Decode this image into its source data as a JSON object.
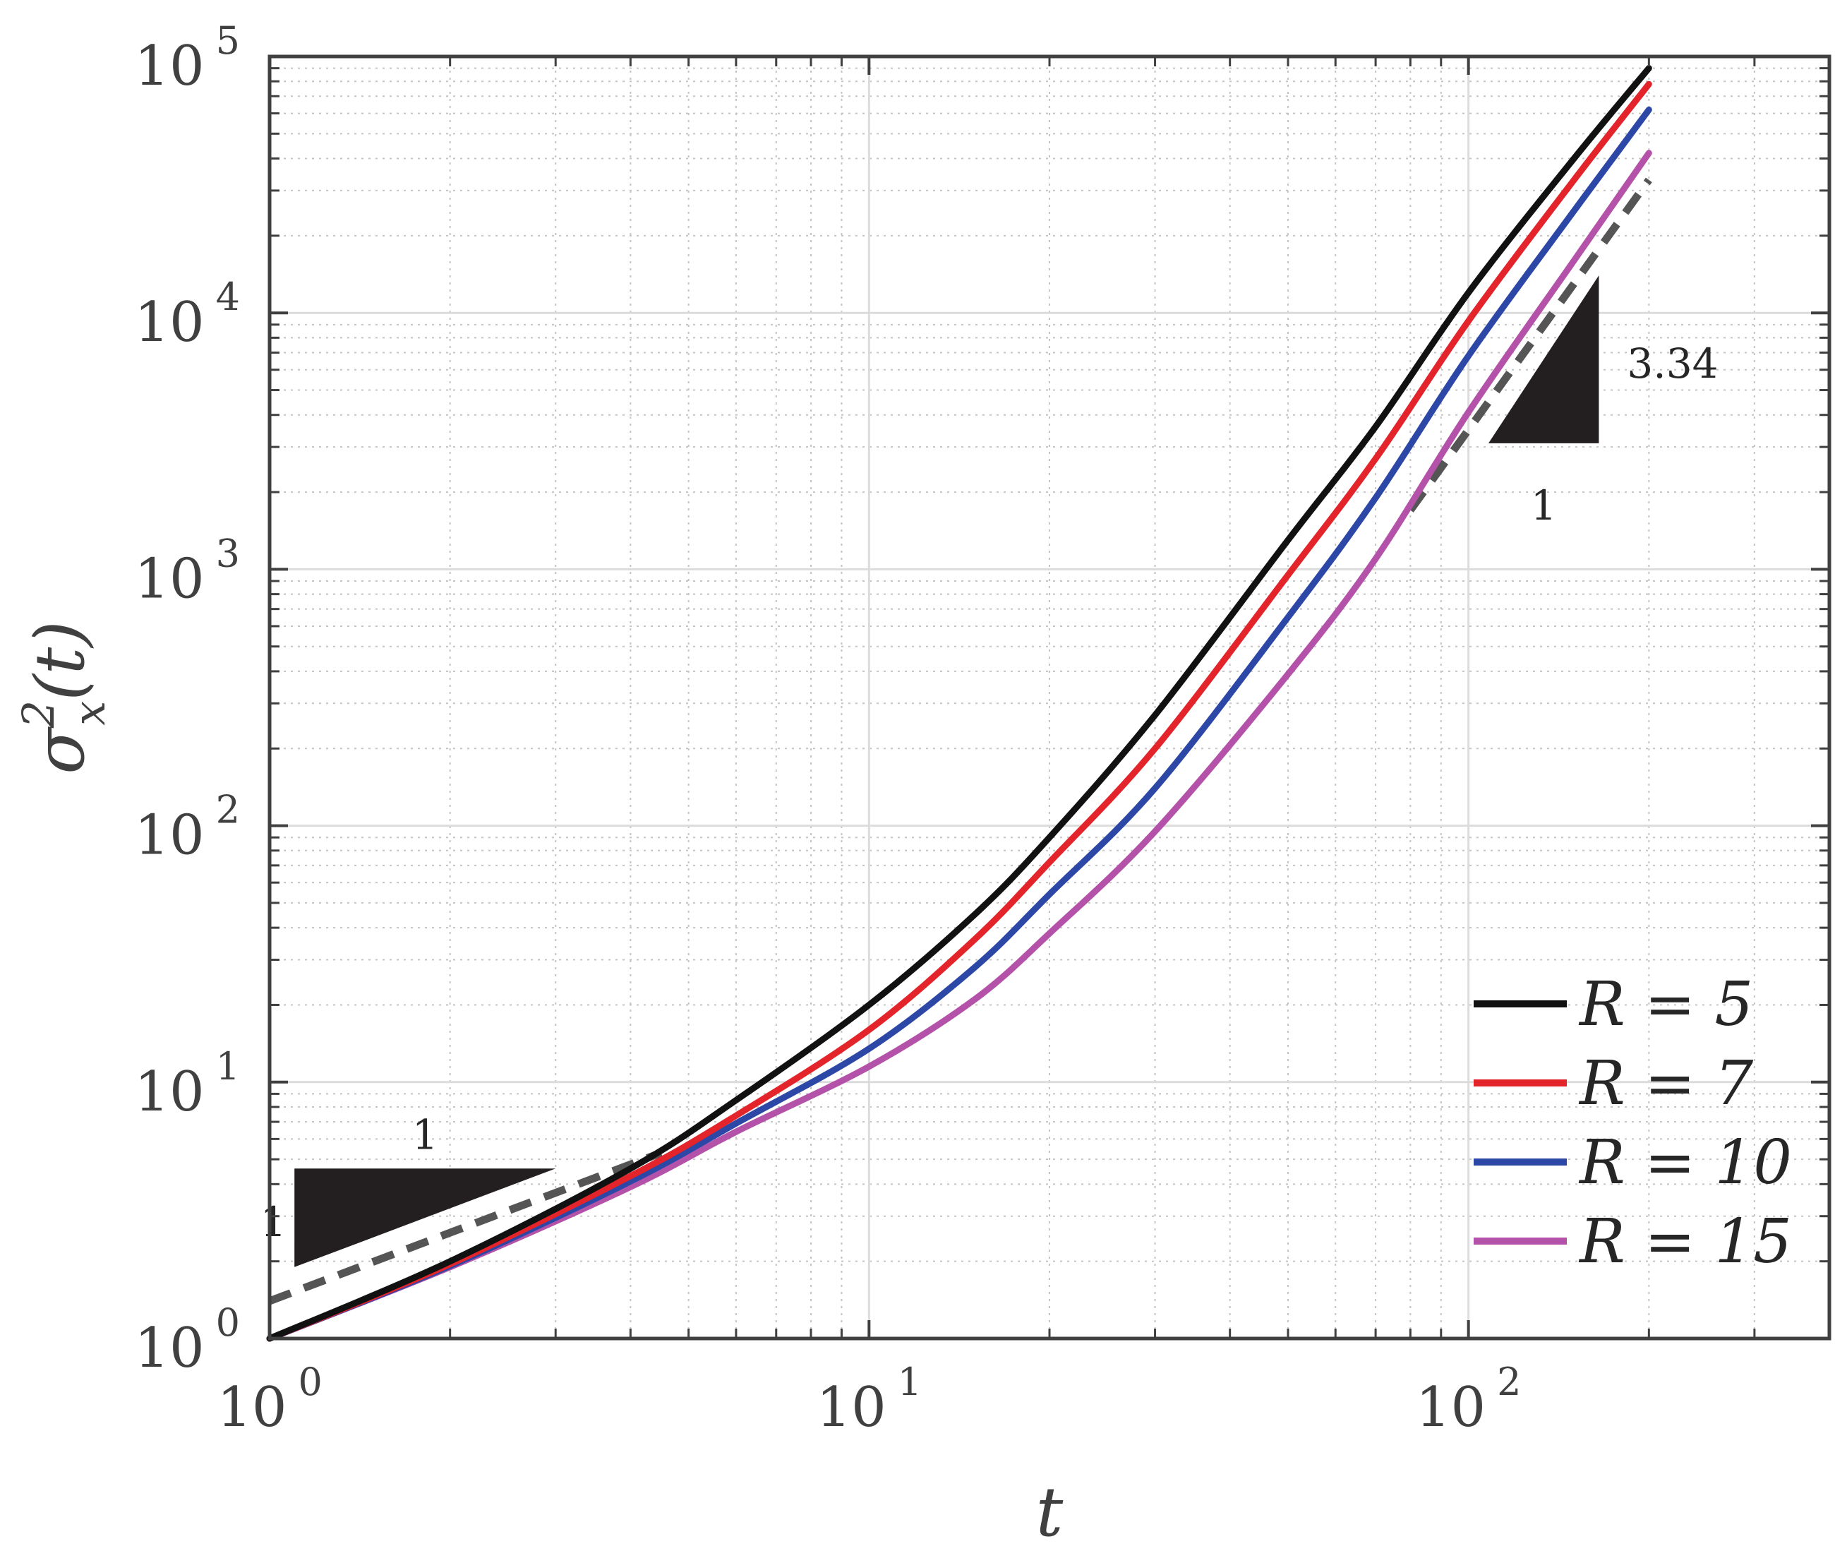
{
  "chart_data": {
    "type": "line",
    "title": "",
    "xlabel": "t",
    "ylabel_base": "σ",
    "ylabel_sup": "2",
    "ylabel_sub": "x",
    "ylabel_tail": "(t)",
    "x_scale": "log",
    "y_scale": "log",
    "xlim": [
      1,
      400
    ],
    "ylim": [
      1,
      100000
    ],
    "grid": true,
    "minor_grid": true,
    "legend_position": "bottom-right",
    "x_ticks": [
      {
        "value": 1,
        "base": "10",
        "exp": "0"
      },
      {
        "value": 10,
        "base": "10",
        "exp": "1"
      },
      {
        "value": 100,
        "base": "10",
        "exp": "2"
      }
    ],
    "y_ticks": [
      {
        "value": 1,
        "base": "10",
        "exp": "0"
      },
      {
        "value": 10,
        "base": "10",
        "exp": "1"
      },
      {
        "value": 100,
        "base": "10",
        "exp": "2"
      },
      {
        "value": 1000,
        "base": "10",
        "exp": "3"
      },
      {
        "value": 10000,
        "base": "10",
        "exp": "4"
      },
      {
        "value": 100000,
        "base": "10",
        "exp": "5"
      }
    ],
    "series": [
      {
        "name": "R = 5",
        "color": "#111111",
        "x": [
          1,
          2,
          4,
          6,
          10,
          15,
          20,
          30,
          50,
          70,
          100,
          150,
          200
        ],
        "y": [
          1,
          2.0,
          4.6,
          8.5,
          20,
          45,
          90,
          270,
          1300,
          3600,
          12000,
          40000,
          90000
        ]
      },
      {
        "name": "R = 7",
        "color": "#e3242b",
        "x": [
          1,
          2,
          4,
          6,
          10,
          15,
          20,
          30,
          50,
          70,
          100,
          150,
          200
        ],
        "y": [
          1,
          1.95,
          4.3,
          7.4,
          16,
          36,
          72,
          200,
          950,
          2700,
          9300,
          33000,
          78000
        ]
      },
      {
        "name": "R = 10",
        "color": "#2d47a6",
        "x": [
          1,
          2,
          4,
          6,
          10,
          15,
          20,
          30,
          50,
          70,
          100,
          150,
          200
        ],
        "y": [
          1,
          1.92,
          4.1,
          6.9,
          13.5,
          28,
          54,
          140,
          650,
          1900,
          6800,
          25000,
          62000
        ]
      },
      {
        "name": "R = 15",
        "color": "#b451a9",
        "x": [
          1,
          2,
          4,
          6,
          10,
          15,
          20,
          30,
          50,
          70,
          100,
          150,
          200
        ],
        "y": [
          1,
          1.9,
          3.9,
          6.4,
          11.5,
          21,
          38,
          95,
          390,
          1100,
          4100,
          16000,
          42000
        ]
      }
    ],
    "reference_line": {
      "style": "dashed",
      "color": "#555555",
      "segments": [
        {
          "x": [
            1,
            4.5
          ],
          "y": [
            1.4,
            5.3
          ]
        },
        {
          "x": [
            80,
            200
          ],
          "y": [
            1700,
            33000
          ]
        }
      ]
    },
    "annotations": [
      {
        "kind": "slope-triangle",
        "slope_label": "1",
        "run_label": "1",
        "corners": [
          [
            1.1,
            1.9
          ],
          [
            3.0,
            4.6
          ],
          [
            1.1,
            4.6
          ]
        ]
      },
      {
        "kind": "slope-triangle",
        "slope_label": "3.34",
        "run_label": "1",
        "corners": [
          [
            108,
            3100
          ],
          [
            165,
            3100
          ],
          [
            165,
            14000
          ]
        ]
      }
    ]
  }
}
